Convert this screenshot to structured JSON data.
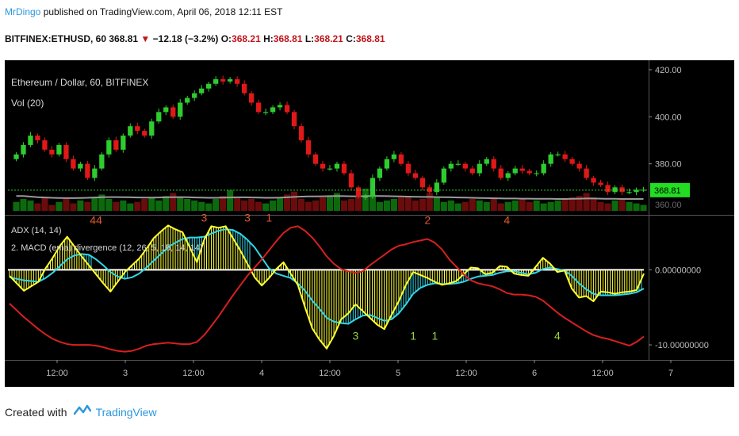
{
  "header": {
    "author": "MrDingo",
    "published_text": "published on TradingView.com, April 06, 2018 12:11 EST",
    "symbol": "BITFINEX:ETHUSD, 60",
    "last": "368.81",
    "change": "−12.18 (−3.2%)",
    "o_label": "O:",
    "o_val": "368.21",
    "h_label": "H:",
    "h_val": "368.81",
    "l_label": "L:",
    "l_val": "368.21",
    "c_label": "C:",
    "c_val": "368.81"
  },
  "footer": {
    "created_with": "Created with",
    "brand": "TradingView"
  },
  "colors": {
    "bull": "#2ecc2e",
    "bear": "#e01818",
    "macd_fill": "#ffff33",
    "signal_fill": "#33d6e6",
    "adx": "#d62020",
    "grid": "#1a1a1a",
    "axis_text": "#bdbdbd",
    "price_tag_bg": "#22dd22"
  },
  "chart_data": [
    {
      "type": "candlestick",
      "title": "Ethereum / Dollar, 60, BITFINEX",
      "indicator_label": "Vol (20)",
      "y_axis_ticks": [
        "420.00",
        "400.00",
        "380.00"
      ],
      "y_range": [
        360,
        422
      ],
      "last_price_tag": "368.81",
      "hidden_tick": "360.00",
      "close_path": [
        384,
        388,
        392,
        390,
        386,
        384,
        388,
        382,
        378,
        380,
        374,
        378,
        384,
        390,
        386,
        392,
        396,
        394,
        392,
        398,
        402,
        404,
        400,
        406,
        408,
        410,
        412,
        414,
        416,
        415,
        416,
        414,
        410,
        406,
        402,
        402,
        404,
        405,
        402,
        396,
        390,
        384,
        380,
        378,
        378,
        380,
        376,
        370,
        366,
        366,
        374,
        378,
        382,
        384,
        380,
        376,
        374,
        370,
        368,
        372,
        378,
        380,
        380,
        378,
        376,
        380,
        382,
        378,
        374,
        376,
        378,
        377,
        376,
        376,
        380,
        384,
        384,
        382,
        380,
        378,
        374,
        372,
        371,
        368,
        370,
        368,
        368,
        369,
        369
      ],
      "volumes": [
        6,
        8,
        7,
        5,
        9,
        4,
        6,
        8,
        5,
        7,
        6,
        9,
        11,
        8,
        6,
        7,
        5,
        6,
        8,
        9,
        7,
        10,
        12,
        9,
        8,
        7,
        6,
        5,
        8,
        10,
        14,
        9,
        7,
        8,
        6,
        5,
        7,
        9,
        11,
        13,
        8,
        6,
        7,
        9,
        10,
        12,
        7,
        8,
        9,
        15,
        11,
        6,
        7,
        8,
        9,
        10,
        7,
        8,
        12,
        9,
        6,
        7,
        5,
        6,
        8,
        7,
        6,
        9,
        5,
        6,
        7,
        8,
        6,
        7,
        5,
        6,
        7,
        8,
        9,
        10,
        12,
        9,
        6,
        5,
        7,
        8,
        6,
        5,
        4
      ],
      "vol_ma": [
        10,
        10,
        9.6,
        9.2,
        9,
        8.8,
        8.7,
        8.6,
        8.6,
        8.7,
        8.8,
        9,
        9.2,
        9.3,
        9.3,
        9.2,
        9.1,
        9,
        8.9,
        8.9,
        9,
        9.1,
        9.2,
        9.3,
        9.2,
        9,
        8.9,
        8.8,
        8.8,
        8.9,
        9,
        9.1,
        9.1,
        9,
        8.9,
        8.8,
        8.8,
        8.9,
        9.1,
        9.4,
        9.6,
        9.7,
        9.7,
        9.8,
        9.9,
        10,
        9.9,
        9.8,
        9.8,
        9.9,
        10,
        10,
        9.9,
        9.8,
        9.7,
        9.6,
        9.5,
        9.4,
        9.4,
        9.3,
        9.2,
        9.1,
        9,
        8.9,
        8.8,
        8.7,
        8.6,
        8.5,
        8.4,
        8.3,
        8.3,
        8.2,
        8.2,
        8.1,
        8.1,
        8.1,
        8,
        8,
        8.1,
        8.2,
        8.3,
        8.3,
        8.2,
        8.1,
        8.1,
        8,
        8,
        8,
        8
      ]
    },
    {
      "type": "line",
      "legend": [
        "ADX (14, 14)",
        "2. MACD (ema) divergence (12, 26, 5, 15, 14, 14)"
      ],
      "y_axis_ticks": [
        "0.00000000",
        "-10.00000000"
      ],
      "y_range": [
        -12,
        7
      ],
      "macd": [
        -0.8,
        -1.8,
        -2.8,
        -2.2,
        -1.6,
        0.2,
        1.6,
        3.2,
        4.4,
        3.1,
        1.8,
        0.6,
        -0.6,
        -1.8,
        -2.9,
        -1.6,
        -0.3,
        0.6,
        1.5,
        2.8,
        4.2,
        5.1,
        5.9,
        5.4,
        5.0,
        3.0,
        1.0,
        4.0,
        5.8,
        5.6,
        5.8,
        4.2,
        2.6,
        0.8,
        -1.0,
        -2.1,
        -1.1,
        0.1,
        1.0,
        -0.5,
        -2.0,
        -5.0,
        -7.8,
        -9.3,
        -10.5,
        -8.8,
        -6.6,
        -5.8,
        -4.6,
        -5.5,
        -6.4,
        -7.3,
        -7.9,
        -6.0,
        -4.2,
        -2.0,
        -0.3,
        -0.7,
        -1.1,
        -1.6,
        -2.0,
        -1.8,
        -1.5,
        -0.6,
        0.3,
        0.2,
        -0.6,
        -0.4,
        0.5,
        0.4,
        -0.5,
        -0.7,
        -0.8,
        0.4,
        1.6,
        0.8,
        -0.3,
        -0.1,
        -2.5,
        -3.7,
        -3.5,
        -4.2,
        -2.9,
        -3.0,
        -3.2,
        -3.0,
        -2.9,
        -2.7,
        -0.5
      ],
      "signal": [
        -1.0,
        -1.2,
        -1.4,
        -1.5,
        -1.6,
        -1.1,
        -0.4,
        0.5,
        1.4,
        1.9,
        2.1,
        2.0,
        1.4,
        0.6,
        -0.3,
        -0.9,
        -1.2,
        -1.0,
        -0.5,
        0.3,
        1.2,
        2.1,
        3.0,
        3.6,
        4.1,
        4.3,
        4.3,
        4.4,
        4.8,
        5.2,
        5.4,
        5.3,
        4.8,
        4.0,
        3.0,
        1.6,
        0.2,
        -0.5,
        -0.8,
        -1.1,
        -1.8,
        -2.8,
        -4.1,
        -5.2,
        -6.4,
        -6.9,
        -7.1,
        -7.2,
        -6.6,
        -6.1,
        -6.0,
        -6.4,
        -6.8,
        -6.6,
        -5.8,
        -4.6,
        -3.2,
        -2.4,
        -2.0,
        -1.8,
        -1.9,
        -1.9,
        -1.8,
        -1.6,
        -1.2,
        -0.9,
        -0.8,
        -0.7,
        -0.4,
        -0.2,
        -0.2,
        -0.4,
        -0.6,
        -0.4,
        0.1,
        0.3,
        0.1,
        -0.1,
        -0.8,
        -1.8,
        -2.6,
        -3.2,
        -3.4,
        -3.4,
        -3.4,
        -3.3,
        -3.2,
        -3.0,
        -2.5
      ],
      "adx": [
        -4.5,
        -5.4,
        -6.3,
        -7.1,
        -7.9,
        -8.6,
        -9.2,
        -9.6,
        -9.9,
        -10.0,
        -10.0,
        -10.0,
        -10.1,
        -10.3,
        -10.6,
        -10.8,
        -10.9,
        -10.8,
        -10.5,
        -10.1,
        -9.9,
        -9.8,
        -9.7,
        -9.8,
        -9.9,
        -9.9,
        -9.6,
        -8.7,
        -7.5,
        -6.2,
        -4.8,
        -3.4,
        -2.1,
        -0.8,
        0.3,
        1.4,
        2.6,
        3.8,
        4.9,
        5.6,
        5.8,
        5.2,
        4.3,
        3.1,
        1.8,
        0.8,
        0.1,
        -0.2,
        -0.4,
        -0.2,
        0.6,
        1.3,
        2.0,
        2.7,
        3.2,
        3.4,
        3.7,
        3.9,
        4.1,
        3.6,
        2.7,
        1.4,
        0.4,
        -0.6,
        -1.4,
        -1.8,
        -2.0,
        -2.2,
        -2.6,
        -3.1,
        -3.3,
        -3.3,
        -3.4,
        -3.6,
        -4.1,
        -4.9,
        -5.7,
        -6.4,
        -7.0,
        -7.6,
        -8.2,
        -8.7,
        -9.0,
        -9.2,
        -9.5,
        -9.8,
        -10.1,
        -9.6,
        -8.9
      ],
      "annotations": [
        {
          "text": "44",
          "i": 12,
          "y": 6.1,
          "color": "#e05a2c"
        },
        {
          "text": "3",
          "i": 27,
          "y": 6.4,
          "color": "#e05a2c"
        },
        {
          "text": "3",
          "i": 33,
          "y": 6.4,
          "color": "#e05a2c"
        },
        {
          "text": "1",
          "i": 36,
          "y": 6.4,
          "color": "#e05a2c"
        },
        {
          "text": "2",
          "i": 58,
          "y": 6.1,
          "color": "#e05a2c"
        },
        {
          "text": "4",
          "i": 69,
          "y": 6.1,
          "color": "#e05a2c"
        },
        {
          "text": "3",
          "i": 48,
          "y": -9.3,
          "color": "#9bd23a"
        },
        {
          "text": "1",
          "i": 56,
          "y": -9.3,
          "color": "#9bd23a"
        },
        {
          "text": "1",
          "i": 59,
          "y": -9.3,
          "color": "#9bd23a"
        },
        {
          "text": "4",
          "i": 76,
          "y": -9.3,
          "color": "#9bd23a"
        }
      ]
    },
    {
      "type": "time_axis",
      "labels": [
        {
          "text": "12:00",
          "x": 66
        },
        {
          "text": "3",
          "x": 152
        },
        {
          "text": "12:00",
          "x": 238
        },
        {
          "text": "4",
          "x": 324
        },
        {
          "text": "12:00",
          "x": 410
        },
        {
          "text": "5",
          "x": 496
        },
        {
          "text": "12:00",
          "x": 582
        },
        {
          "text": "6",
          "x": 668
        },
        {
          "text": "12:00",
          "x": 754
        },
        {
          "text": "7",
          "x": 840
        }
      ]
    }
  ]
}
